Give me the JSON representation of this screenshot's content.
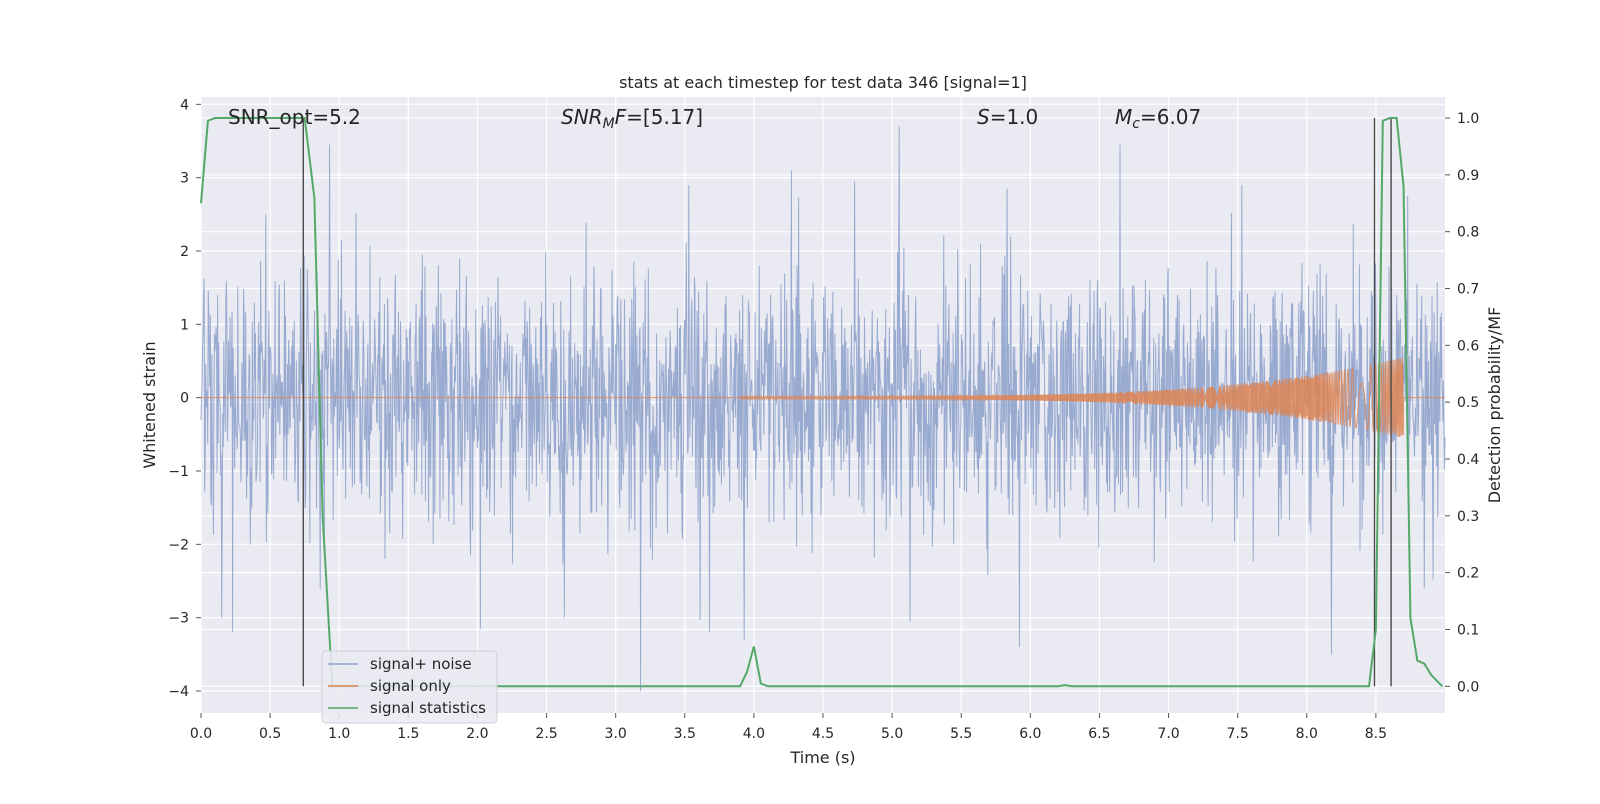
{
  "chart_data": {
    "type": "line",
    "title": "stats at each timestep for test data 346 [signal=1]",
    "xlabel": "Time (s)",
    "ylabel_left": "Whitened strain",
    "ylabel_right": "Detection probability/MF",
    "xlim": [
      0.0,
      9.0
    ],
    "ylim_left": [
      -4.3,
      4.1
    ],
    "ylim_right": [
      -0.047,
      1.037
    ],
    "x_ticks": [
      "0.0",
      "0.5",
      "1.0",
      "1.5",
      "2.0",
      "2.5",
      "3.0",
      "3.5",
      "4.0",
      "4.5",
      "5.0",
      "5.5",
      "6.0",
      "6.5",
      "7.0",
      "7.5",
      "8.0",
      "8.5"
    ],
    "y_ticks_left": [
      "4",
      "3",
      "2",
      "1",
      "0",
      "−1",
      "−2",
      "−3",
      "−4"
    ],
    "y_ticks_right": [
      "1.0",
      "0.9",
      "0.8",
      "0.7",
      "0.6",
      "0.5",
      "0.4",
      "0.3",
      "0.2",
      "0.1",
      "0.0"
    ],
    "grid": true,
    "legend_position": "lower-left",
    "annotations": {
      "snr_opt": "SNR_opt=5.2",
      "snr_mf_var": "SNR",
      "snr_mf_sub": "M",
      "snr_mf_var2": "F",
      "snr_mf_value": "=[5.17]",
      "s_var": "S",
      "s_value": "=1.0",
      "mc_var": "M",
      "mc_sub": "c",
      "mc_value": "=6.07"
    },
    "series": [
      {
        "name": "signal+ noise",
        "color": "#8fa3cc",
        "axis": "left",
        "kind": "noise",
        "envelope_rms": 0.85,
        "spikes": [
          {
            "t": 0.15,
            "v": -3.0
          },
          {
            "t": 0.23,
            "v": -3.2
          },
          {
            "t": 0.47,
            "v": 2.5
          },
          {
            "t": 0.93,
            "v": 3.45
          },
          {
            "t": 1.33,
            "v": -2.2
          },
          {
            "t": 2.02,
            "v": -3.15
          },
          {
            "t": 2.63,
            "v": -3.0
          },
          {
            "t": 3.18,
            "v": -4.0
          },
          {
            "t": 3.53,
            "v": 2.9
          },
          {
            "t": 3.68,
            "v": -3.2
          },
          {
            "t": 3.93,
            "v": -3.3
          },
          {
            "t": 4.27,
            "v": 3.1
          },
          {
            "t": 4.73,
            "v": 2.95
          },
          {
            "t": 5.05,
            "v": 3.7
          },
          {
            "t": 5.13,
            "v": -3.05
          },
          {
            "t": 5.83,
            "v": 2.85
          },
          {
            "t": 5.92,
            "v": -3.4
          },
          {
            "t": 6.65,
            "v": 3.45
          },
          {
            "t": 7.53,
            "v": 2.9
          },
          {
            "t": 8.18,
            "v": -3.5
          },
          {
            "t": 8.73,
            "v": 2.75
          },
          {
            "t": 8.85,
            "v": -2.6
          }
        ]
      },
      {
        "name": "signal only",
        "color": "#dd8452",
        "axis": "left",
        "kind": "chirp",
        "start": 3.9,
        "end": 8.7,
        "amp_start": 0.02,
        "amp_end": 0.55
      },
      {
        "name": "signal statistics",
        "color": "#55a868",
        "axis": "right",
        "kind": "line",
        "x": [
          0.0,
          0.05,
          0.1,
          0.2,
          0.3,
          0.4,
          0.5,
          0.6,
          0.7,
          0.75,
          0.82,
          0.88,
          0.95,
          1.05,
          3.9,
          3.95,
          4.0,
          4.05,
          4.1,
          6.2,
          6.25,
          6.3,
          8.45,
          8.5,
          8.55,
          8.6,
          8.65,
          8.7,
          8.75,
          8.8,
          8.85,
          8.9,
          8.98
        ],
        "y": [
          0.85,
          0.995,
          1.0,
          1.0,
          1.0,
          1.0,
          1.0,
          1.0,
          1.0,
          1.0,
          0.86,
          0.3,
          0.0,
          0.0,
          0.0,
          0.025,
          0.07,
          0.005,
          0.0,
          0.0,
          0.002,
          0.0,
          0.0,
          0.1,
          0.995,
          1.0,
          1.0,
          0.88,
          0.12,
          0.045,
          0.04,
          0.02,
          0.0
        ]
      }
    ],
    "vertical_markers": [
      {
        "x": 0.74,
        "top": 1.0,
        "bottom": 0.0,
        "color": "#4a4a4a"
      },
      {
        "x": 8.49,
        "top": 1.0,
        "bottom": 0.0,
        "color": "#4a4a4a"
      },
      {
        "x": 8.61,
        "top": 1.0,
        "bottom": 0.0,
        "color": "#4a4a4a"
      }
    ]
  }
}
